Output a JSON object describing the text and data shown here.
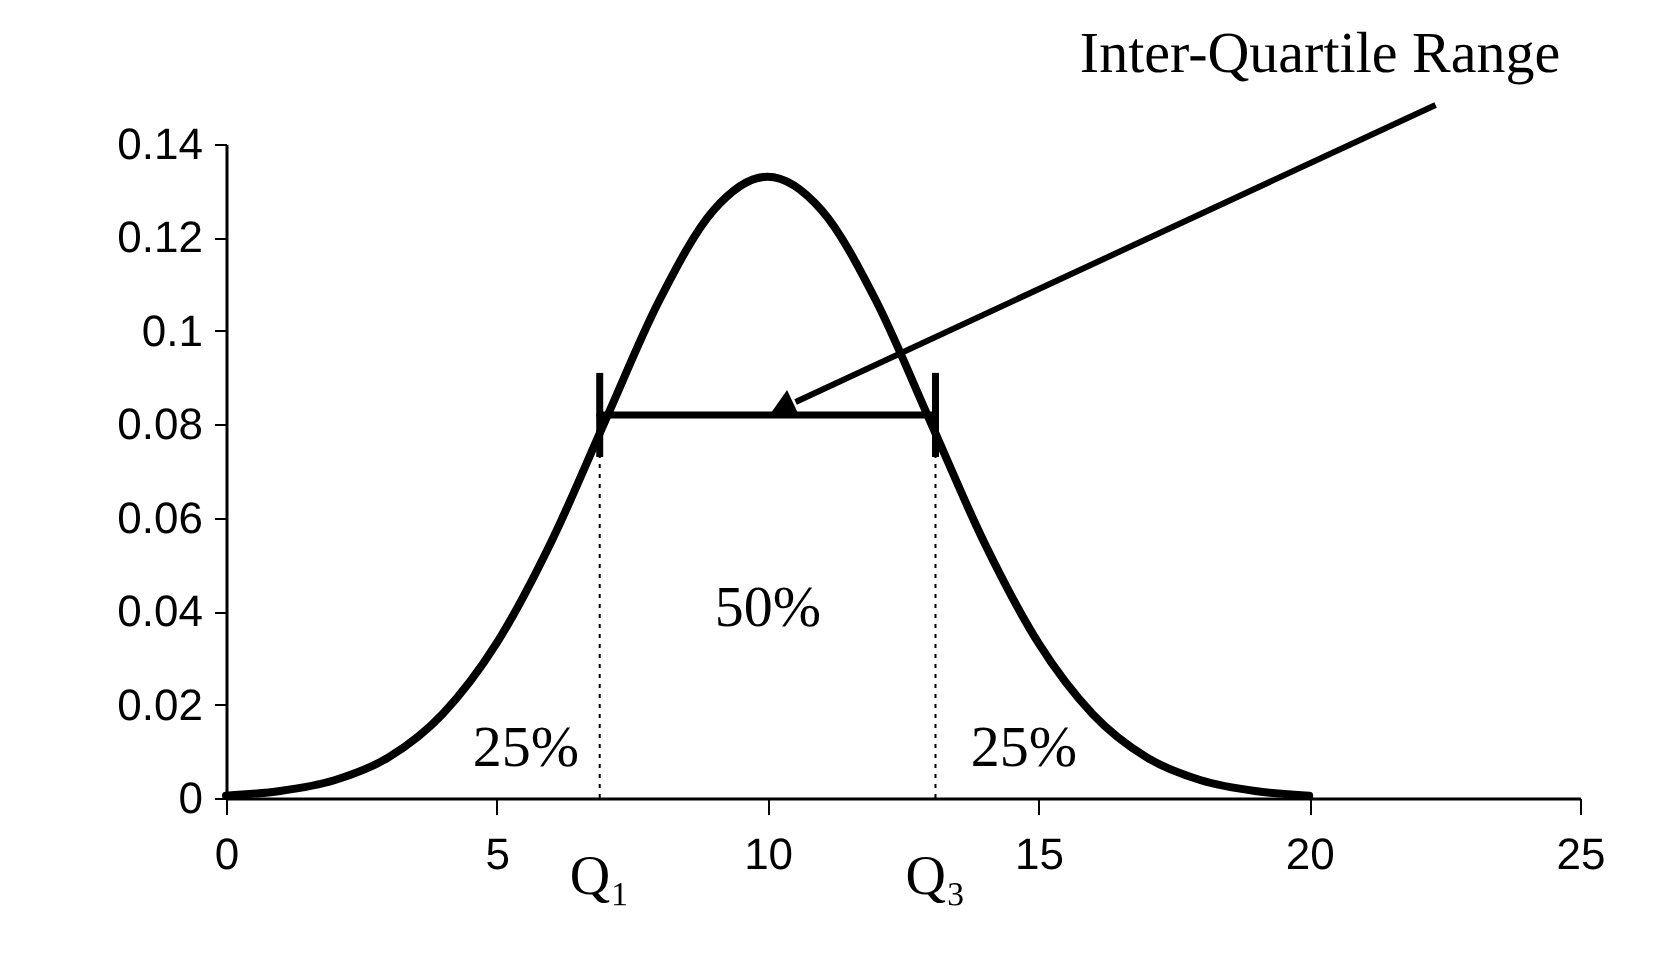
{
  "chart_data": {
    "type": "line",
    "xlim": [
      0,
      25
    ],
    "xticks": [
      0,
      5,
      10,
      15,
      20,
      25
    ],
    "ylim": [
      0,
      0.14
    ],
    "yticks": [
      0,
      0.02,
      0.04,
      0.06,
      0.08,
      0.1,
      0.12,
      0.14
    ],
    "grid": false,
    "marker": "none",
    "line_style": "solid",
    "series": [
      {
        "color": "#000000",
        "x": [
          0,
          1,
          2,
          3,
          4,
          5,
          6,
          7,
          8,
          9,
          10,
          11,
          12,
          13,
          14,
          15,
          16,
          17,
          18,
          19,
          20
        ],
        "values": [
          0.0005,
          0.0015,
          0.0038,
          0.0087,
          0.018,
          0.0332,
          0.0547,
          0.0807,
          0.1065,
          0.1258,
          0.133,
          0.1258,
          0.1065,
          0.0807,
          0.0547,
          0.0332,
          0.018,
          0.0087,
          0.0038,
          0.0015,
          0.0005
        ]
      },
      {
        "color": "#000000",
        "x": [
          6.9,
          13.1
        ],
        "values": [
          0.082,
          0.082
        ],
        "errors": [
          0.009,
          0.009
        ]
      }
    ],
    "ref_lines": [
      {
        "axis": "x",
        "value": 6.9,
        "label": "Q₁",
        "line_style": "dotted",
        "color": "#000000"
      },
      {
        "axis": "x",
        "value": 13.1,
        "label": "Q₃",
        "line_style": "dotted",
        "color": "#000000"
      }
    ],
    "annotations": [
      "Inter-Quartile Range",
      "50%",
      "25%",
      "25%"
    ]
  }
}
